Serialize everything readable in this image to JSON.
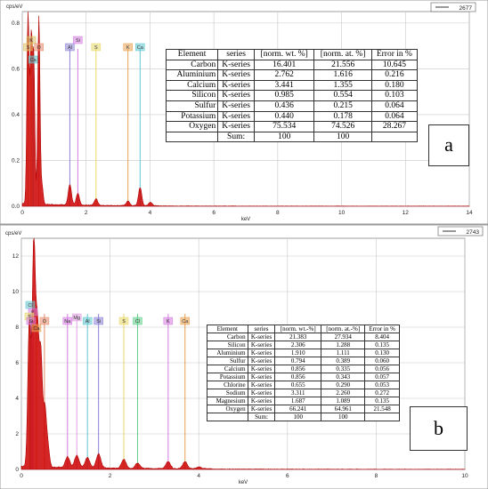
{
  "chart_data": [
    {
      "type": "line",
      "panel_label": "a",
      "ylabel": "cps/eV",
      "xlabel": "keV",
      "legend": "2677",
      "xlim": [
        0,
        14
      ],
      "ylim": [
        0,
        0.85
      ],
      "x_ticks": [
        "0",
        "2",
        "4",
        "6",
        "8",
        "10",
        "12",
        "14"
      ],
      "y_ticks": [
        "0.0",
        "0.2",
        "0.4",
        "0.6",
        "0.8"
      ],
      "y_tick_values": [
        0,
        0.2,
        0.4,
        0.6,
        0.8
      ],
      "peaks": [
        {
          "x": 0.18,
          "y": 0.84
        },
        {
          "x": 0.28,
          "y": 0.7
        },
        {
          "x": 0.36,
          "y": 0.62
        },
        {
          "x": 0.52,
          "y": 0.82
        },
        {
          "x": 0.62,
          "y": 0.08
        },
        {
          "x": 1.49,
          "y": 0.09
        },
        {
          "x": 1.74,
          "y": 0.05
        },
        {
          "x": 2.31,
          "y": 0.03
        },
        {
          "x": 3.31,
          "y": 0.02
        },
        {
          "x": 3.69,
          "y": 0.08
        },
        {
          "x": 4.01,
          "y": 0.015
        }
      ],
      "element_markers": [
        {
          "label": "K",
          "x": 0.28,
          "color": "#d8c060"
        },
        {
          "label": "S",
          "x": 0.18,
          "color": "#e0c060"
        },
        {
          "label": "Ca",
          "x": 0.34,
          "color": "#5fc7d0"
        },
        {
          "label": "O",
          "x": 0.52,
          "color": "#e58a6a"
        },
        {
          "label": "Al",
          "x": 1.49,
          "color": "#8b82d6"
        },
        {
          "label": "Si",
          "x": 1.74,
          "color": "#d37be0"
        },
        {
          "label": "S",
          "x": 2.31,
          "color": "#e8d867"
        },
        {
          "label": "K",
          "x": 3.31,
          "color": "#e8a050"
        },
        {
          "label": "Ca",
          "x": 3.69,
          "color": "#5fc7d0"
        }
      ],
      "table": {
        "headers": [
          "Element",
          "series",
          "[norm. wt. %]",
          "[norm. at. %]",
          "Error in %"
        ],
        "rows": [
          [
            "Carbon",
            "K-series",
            "16.401",
            "21.556",
            "10.645"
          ],
          [
            "Aluminium",
            "K-series",
            "2.762",
            "1.616",
            "0.216"
          ],
          [
            "Calcium",
            "K-series",
            "3.441",
            "1.355",
            "0.180"
          ],
          [
            "Silicon",
            "K-series",
            "0.985",
            "0.554",
            "0.103"
          ],
          [
            "Sulfur",
            "K-series",
            "0.436",
            "0.215",
            "0.064"
          ],
          [
            "Potassium",
            "K-series",
            "0.440",
            "0.178",
            "0.064"
          ],
          [
            "Oxygen",
            "K-series",
            "75.534",
            "74.526",
            "28.267"
          ]
        ],
        "sum_row": [
          "",
          "Sum:",
          "100",
          "100",
          ""
        ]
      }
    },
    {
      "type": "line",
      "panel_label": "b",
      "ylabel": "cps/eV",
      "xlabel": "keV",
      "legend": "2743",
      "xlim": [
        0,
        10
      ],
      "ylim": [
        0,
        13
      ],
      "x_ticks": [
        "0",
        "2",
        "4",
        "6",
        "8",
        "10"
      ],
      "y_ticks": [
        "0",
        "2",
        "4",
        "6",
        "8",
        "10",
        "12"
      ],
      "y_tick_values": [
        0,
        2,
        4,
        6,
        8,
        10,
        12
      ],
      "peaks": [
        {
          "x": 0.18,
          "y": 8.2
        },
        {
          "x": 0.28,
          "y": 12.5
        },
        {
          "x": 0.36,
          "y": 7.4
        },
        {
          "x": 0.44,
          "y": 6.2
        },
        {
          "x": 0.53,
          "y": 3.2
        },
        {
          "x": 0.6,
          "y": 1.1
        },
        {
          "x": 1.04,
          "y": 0.6
        },
        {
          "x": 1.25,
          "y": 0.7
        },
        {
          "x": 1.49,
          "y": 0.6
        },
        {
          "x": 1.74,
          "y": 0.8
        },
        {
          "x": 2.31,
          "y": 0.5
        },
        {
          "x": 2.62,
          "y": 0.3
        },
        {
          "x": 3.31,
          "y": 0.4
        },
        {
          "x": 3.69,
          "y": 0.4
        },
        {
          "x": 4.01,
          "y": 0.1
        }
      ],
      "element_markers": [
        {
          "label": "Cl",
          "x": 0.2,
          "color": "#5fc7d0"
        },
        {
          "label": "K",
          "x": 0.26,
          "color": "#d37be0"
        },
        {
          "label": "S",
          "x": 0.18,
          "color": "#e8d867"
        },
        {
          "label": "Si",
          "x": 0.22,
          "color": "#d37be0"
        },
        {
          "label": "Ca",
          "x": 0.34,
          "color": "#e8a050"
        },
        {
          "label": "O",
          "x": 0.52,
          "color": "#e58a6a"
        },
        {
          "label": "Na",
          "x": 1.04,
          "color": "#d37be0"
        },
        {
          "label": "Mg",
          "x": 1.25,
          "color": "#e0a0e0"
        },
        {
          "label": "Al",
          "x": 1.49,
          "color": "#5fc7d0"
        },
        {
          "label": "Si",
          "x": 1.74,
          "color": "#8b82d6"
        },
        {
          "label": "S",
          "x": 2.31,
          "color": "#e8d867"
        },
        {
          "label": "Cl",
          "x": 2.62,
          "color": "#5fd08a"
        },
        {
          "label": "K",
          "x": 3.31,
          "color": "#d37be0"
        },
        {
          "label": "Ca",
          "x": 3.69,
          "color": "#e8a050"
        }
      ],
      "table": {
        "headers": [
          "Element",
          "series",
          "[norm. wt.-%]",
          "[norm. at.-%]",
          "Error in %"
        ],
        "rows": [
          [
            "Carbon",
            "K-series",
            "21.383",
            "27.934",
            "8.404"
          ],
          [
            "Silicon",
            "K-series",
            "2.306",
            "1.288",
            "0.135"
          ],
          [
            "Aluminium",
            "K-series",
            "1.910",
            "1.111",
            "0.130"
          ],
          [
            "Sulfur",
            "K-series",
            "0.794",
            "0.389",
            "0.060"
          ],
          [
            "Calcium",
            "K-series",
            "0.856",
            "0.335",
            "0.056"
          ],
          [
            "Potassium",
            "K-series",
            "0.856",
            "0.343",
            "0.057"
          ],
          [
            "Chlorine",
            "K-series",
            "0.655",
            "0.290",
            "0.053"
          ],
          [
            "Sodium",
            "K-series",
            "3.311",
            "2.260",
            "0.272"
          ],
          [
            "Magnesium",
            "K-series",
            "1.687",
            "1.089",
            "0.135"
          ],
          [
            "Oxygen",
            "K-series",
            "66.241",
            "64.961",
            "21.548"
          ]
        ],
        "sum_row": [
          "",
          "Sum:",
          "100",
          "100",
          ""
        ]
      }
    }
  ],
  "colors": {
    "spectrum_line": "#b00000",
    "spectrum_fill": "#cc0000",
    "grid": "#c8c8c8",
    "axis": "#333333",
    "frame": "#888888"
  }
}
